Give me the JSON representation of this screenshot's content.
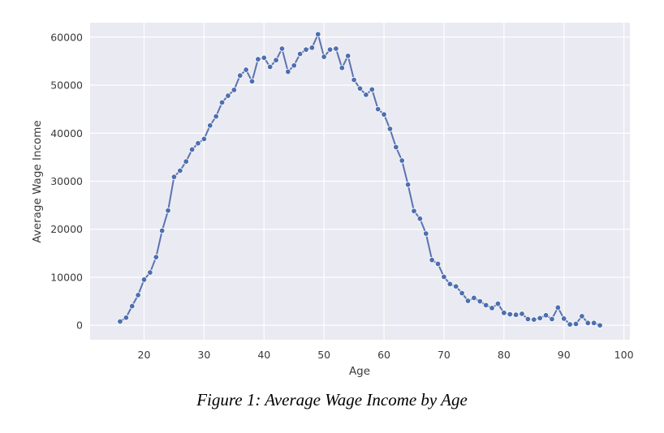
{
  "caption": "Figure 1: Average Wage Income by Age",
  "colors": {
    "plot_background": "#eaeaf2",
    "grid": "#ffffff",
    "line": "#5b74b0",
    "marker": "#4c6fb0",
    "text": "#3a3a3a"
  },
  "chart_data": {
    "type": "line",
    "title": "",
    "xlabel": "Age",
    "ylabel": "Average Wage Income",
    "xlim": [
      11,
      101
    ],
    "ylim": [
      -3000,
      63000
    ],
    "xticks": [
      20,
      30,
      40,
      50,
      60,
      70,
      80,
      90,
      100
    ],
    "yticks": [
      0,
      10000,
      20000,
      30000,
      40000,
      50000,
      60000
    ],
    "grid": true,
    "legend": "none",
    "series": [
      {
        "marker": "circle",
        "x": [
          16,
          17,
          18,
          19,
          20,
          21,
          22,
          23,
          24,
          25,
          26,
          27,
          28,
          29,
          30,
          31,
          32,
          33,
          34,
          35,
          36,
          37,
          38,
          39,
          40,
          41,
          42,
          43,
          44,
          45,
          46,
          47,
          48,
          49,
          50,
          51,
          52,
          53,
          54,
          55,
          56,
          57,
          58,
          59,
          60,
          61,
          62,
          63,
          64,
          65,
          66,
          67,
          68,
          69,
          70,
          71,
          72,
          73,
          74,
          75,
          76,
          77,
          78,
          79,
          80,
          81,
          82,
          83,
          84,
          85,
          86,
          87,
          88,
          89,
          90,
          91,
          92,
          93,
          94,
          95,
          96
        ],
        "y": [
          800,
          1600,
          4000,
          6300,
          9500,
          11000,
          14200,
          19700,
          23900,
          30900,
          32200,
          34100,
          36600,
          37900,
          38800,
          41600,
          43500,
          46400,
          47800,
          49000,
          52000,
          53200,
          50800,
          55400,
          55700,
          53800,
          55200,
          57600,
          52800,
          54100,
          56500,
          57400,
          57800,
          60600,
          55900,
          57400,
          57600,
          53600,
          56100,
          51100,
          49300,
          48000,
          49100,
          45000,
          43900,
          40900,
          37100,
          34300,
          29300,
          23800,
          22200,
          19100,
          13600,
          12800,
          10100,
          8600,
          8100,
          6700,
          5100,
          5700,
          5000,
          4200,
          3600,
          4500,
          2600,
          2300,
          2200,
          2400,
          1300,
          1200,
          1500,
          2100,
          1300,
          3700,
          1400,
          200,
          300,
          1900,
          500,
          500,
          0
        ]
      }
    ]
  }
}
